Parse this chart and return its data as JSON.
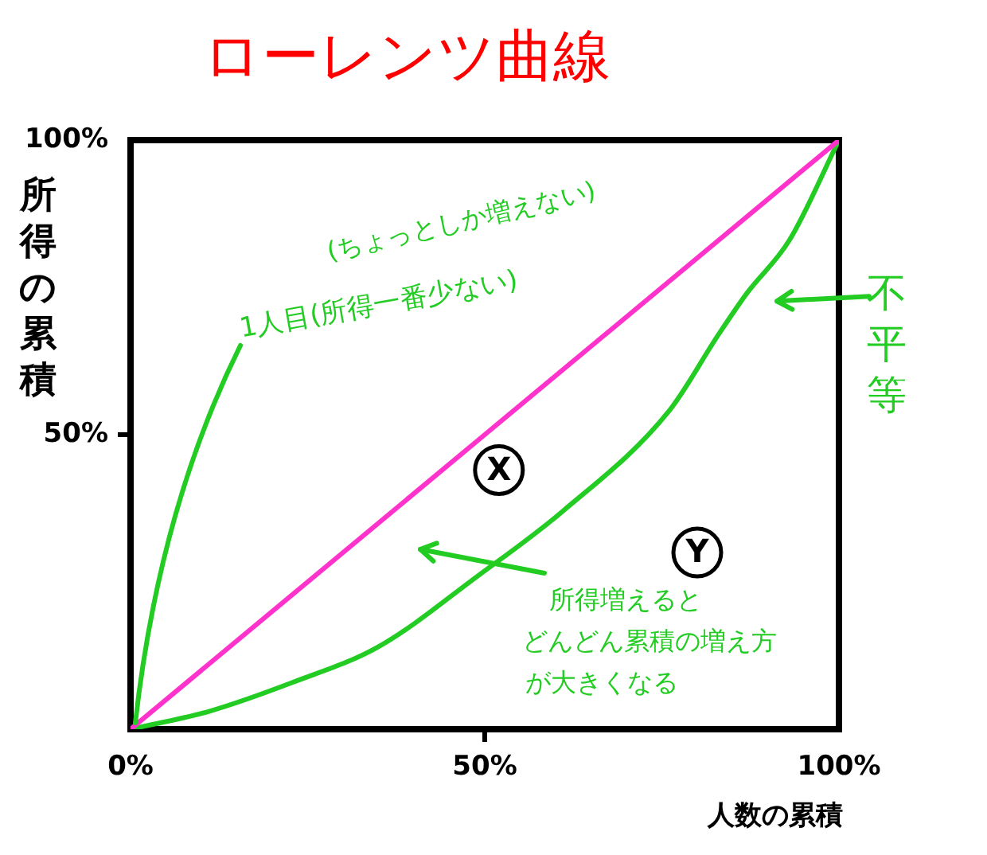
{
  "chart_data": {
    "type": "line",
    "title": "ローレンツ曲線",
    "xlabel": "人数の累積",
    "ylabel": "所得の累積",
    "xlim": [
      0,
      100
    ],
    "ylim": [
      0,
      100
    ],
    "xticks": [
      {
        "value": 0,
        "label": "0%"
      },
      {
        "value": 50,
        "label": "50%"
      },
      {
        "value": 100,
        "label": "100%"
      }
    ],
    "yticks": [
      {
        "value": 50,
        "label": "50%"
      },
      {
        "value": 100,
        "label": "100%"
      }
    ],
    "grid": false,
    "marker": "none",
    "line_style": "solid",
    "series": [
      {
        "color": "#ff33cc",
        "x": [
          0,
          100
        ],
        "values": [
          0,
          100
        ]
      },
      {
        "color": "#22cc22",
        "x": [
          0,
          11,
          23,
          35,
          49,
          61,
          76,
          83,
          87,
          93,
          100
        ],
        "values": [
          0,
          3,
          8,
          14,
          26,
          37,
          54,
          67,
          74,
          83,
          100
        ]
      }
    ],
    "annotations": [
      "1人目(所得一番少ない)",
      "(ちょっとしか増えない)",
      "不平等",
      "所得増えるとどんどん累積の増え方が大きくなる",
      {
        "text": "X",
        "x": 52,
        "y": 44
      },
      {
        "text": "Y",
        "x": 80,
        "y": 30
      }
    ]
  }
}
